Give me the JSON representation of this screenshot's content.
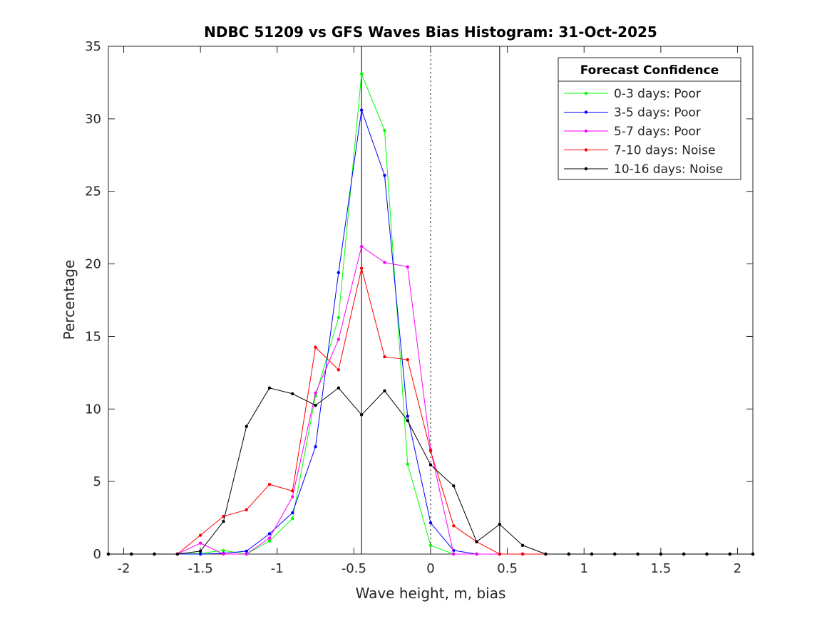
{
  "chart_data": {
    "type": "line",
    "title": "NDBC 51209 vs GFS Waves Bias Histogram: 31-Oct-2025",
    "xlabel": "Wave height, m, bias",
    "ylabel": "Percentage",
    "xlim": [
      -2.1,
      2.1
    ],
    "ylim": [
      0,
      35
    ],
    "xticks": [
      -2,
      -1.5,
      -1,
      -0.5,
      0,
      0.5,
      1,
      1.5,
      2
    ],
    "xtick_labels": [
      "-2",
      "-1.5",
      "-1",
      "-0.5",
      "0",
      "0.5",
      "1",
      "1.5",
      "2"
    ],
    "yticks": [
      0,
      5,
      10,
      15,
      20,
      25,
      30,
      35
    ],
    "ytick_labels": [
      "0",
      "5",
      "10",
      "15",
      "20",
      "25",
      "30",
      "35"
    ],
    "grid": false,
    "vertical_lines": [
      {
        "x": -0.45,
        "style": "solid"
      },
      {
        "x": 0,
        "style": "dotted"
      },
      {
        "x": 0.45,
        "style": "solid"
      }
    ],
    "legend": {
      "title": "Forecast Confidence",
      "placement": "top-right"
    },
    "x": [
      -2.1,
      -1.95,
      -1.8,
      -1.65,
      -1.5,
      -1.35,
      -1.2,
      -1.05,
      -0.9,
      -0.75,
      -0.6,
      -0.45,
      -0.3,
      -0.15,
      0,
      0.15,
      0.3,
      0.45,
      0.6,
      0.75,
      0.9,
      1.05,
      1.2,
      1.35,
      1.5,
      1.65,
      1.8,
      1.95,
      2.1
    ],
    "series": [
      {
        "name": "0-3 days: Poor",
        "color": "#00ff00",
        "values": [
          0,
          0,
          0,
          0,
          0.05,
          0.25,
          0,
          0.9,
          2.45,
          10.9,
          16.3,
          33.1,
          29.2,
          6.2,
          0.6,
          0,
          0,
          0,
          0,
          0,
          0,
          0,
          0,
          0,
          0,
          0,
          0,
          0,
          0
        ]
      },
      {
        "name": "3-5 days: Poor",
        "color": "#0000ff",
        "values": [
          0,
          0,
          0,
          0,
          0,
          0.05,
          0.2,
          1.4,
          2.85,
          7.4,
          19.4,
          30.6,
          26.1,
          9.5,
          2.15,
          0.25,
          0,
          0,
          0,
          0,
          0,
          0,
          0,
          0,
          0,
          0,
          0,
          0,
          0
        ]
      },
      {
        "name": "5-7 days: Poor",
        "color": "#ff00ff",
        "values": [
          0,
          0,
          0,
          0,
          0.75,
          0,
          0,
          1.1,
          3.95,
          11.1,
          14.8,
          21.2,
          20.1,
          19.8,
          7.2,
          0,
          0,
          0,
          0,
          0,
          0,
          0,
          0,
          0,
          0,
          0,
          0,
          0,
          0
        ]
      },
      {
        "name": "7-10 days: Noise",
        "color": "#ff0000",
        "values": [
          0,
          0,
          0,
          0,
          1.3,
          2.6,
          3.05,
          4.8,
          4.35,
          14.25,
          12.7,
          19.7,
          13.6,
          13.4,
          7.1,
          1.95,
          0.85,
          0,
          0,
          0,
          0,
          0,
          0,
          0,
          0,
          0,
          0,
          0,
          0
        ]
      },
      {
        "name": "10-16 days: Noise",
        "color": "#000000",
        "values": [
          0,
          0,
          0,
          0,
          0.2,
          2.25,
          8.8,
          11.45,
          11.05,
          10.25,
          11.45,
          9.6,
          11.25,
          9.2,
          6.15,
          4.7,
          0.85,
          2.05,
          0.6,
          0,
          0,
          0,
          0,
          0,
          0,
          0,
          0,
          0,
          0
        ]
      }
    ]
  }
}
